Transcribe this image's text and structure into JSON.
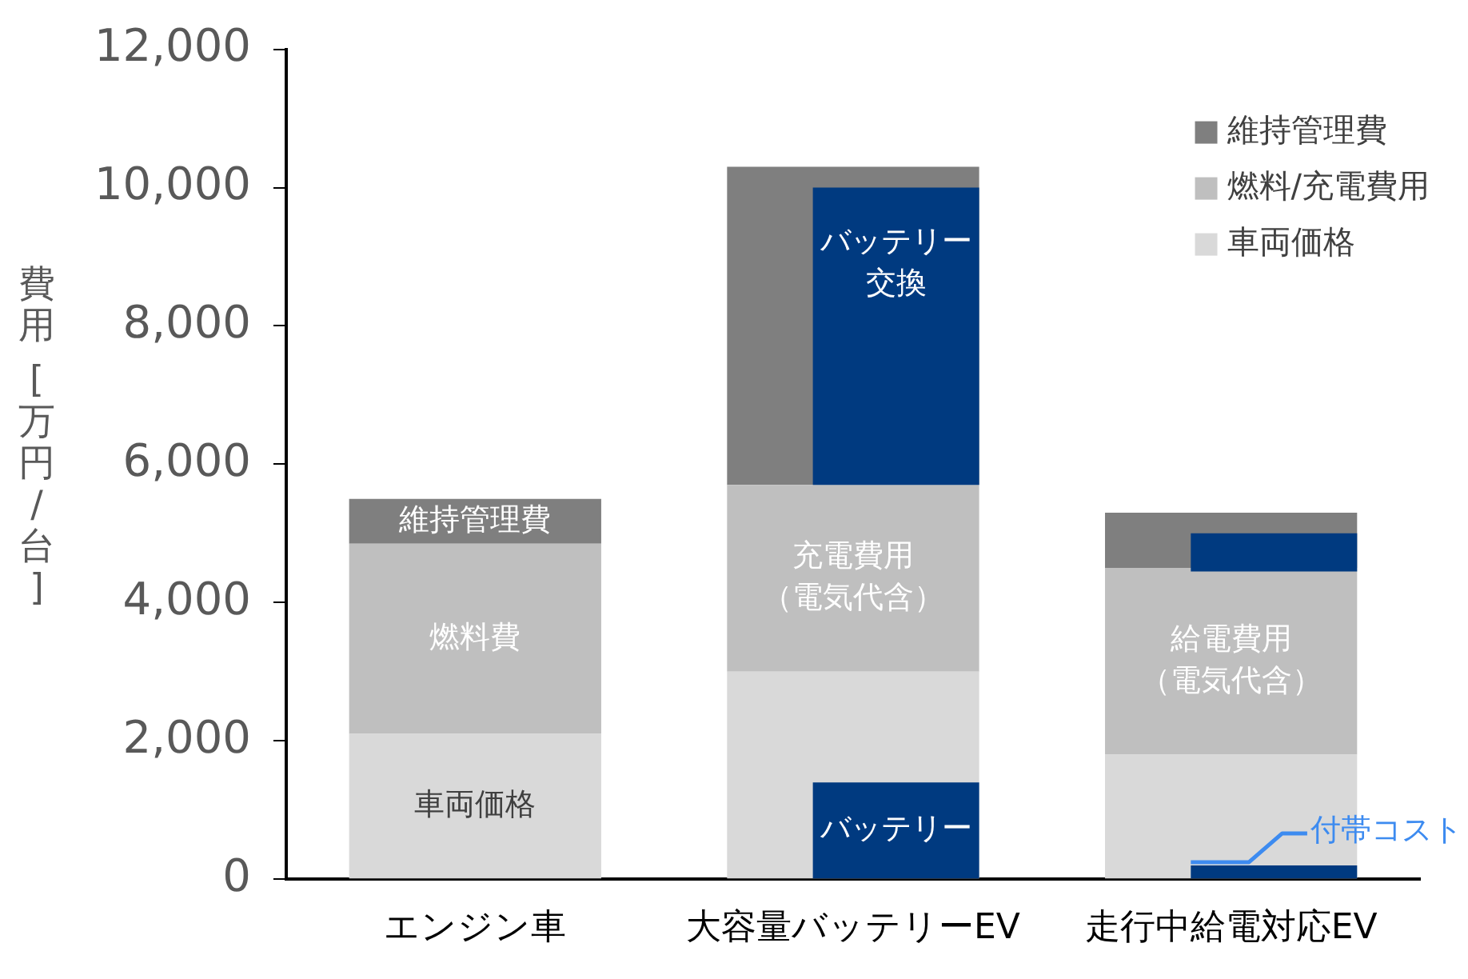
{
  "chart_data": {
    "type": "bar",
    "ylabel": "費用 [万円/台]",
    "categories": [
      "エンジン車",
      "大容量バッテリーEV",
      "走行中給電対応EV"
    ],
    "ylim": [
      0,
      12000
    ],
    "yticks": [
      {
        "value": 0,
        "label": "0"
      },
      {
        "value": 2000,
        "label": "2,000"
      },
      {
        "value": 4000,
        "label": "4,000"
      },
      {
        "value": 6000,
        "label": "6,000"
      },
      {
        "value": 8000,
        "label": "8,000"
      },
      {
        "value": 10000,
        "label": "10,000"
      },
      {
        "value": 12000,
        "label": "12,000"
      }
    ],
    "legend": "top right",
    "series": [
      {
        "name": "車両価格",
        "color": "#d9d9d9",
        "base": [
          0,
          0,
          0
        ],
        "values": [
          2100,
          3000,
          1800
        ]
      },
      {
        "name": "燃料/充電費用",
        "color": "#bfbfbf",
        "base": [
          2100,
          3000,
          1800
        ],
        "values": [
          2750,
          2700,
          2700
        ]
      },
      {
        "name": "維持管理費",
        "color": "#7f7f7f",
        "base": [
          4850,
          5700,
          4500
        ],
        "values": [
          650,
          4600,
          800
        ]
      },
      {
        "color": "#003a80",
        "base": [
          null,
          0,
          0
        ],
        "values": [
          null,
          1400,
          200
        ]
      },
      {
        "color": "#003a80",
        "base": [
          null,
          5700,
          4450
        ],
        "values": [
          null,
          4300,
          550
        ]
      }
    ],
    "annotations": [
      {
        "text": "維持管理費",
        "x": "エンジン車",
        "y": 5500
      },
      {
        "text": "燃料費",
        "x": "エンジン車",
        "y": 4850
      },
      {
        "text": "車両価格",
        "x": "エンジン車",
        "y": 2100
      },
      {
        "text": "充電費用（電気代含）",
        "x": "大容量バッテリーEV",
        "y": 5700
      },
      {
        "text": "バッテリー交換",
        "x": "大容量バッテリーEV",
        "y": 10000
      },
      {
        "text": "バッテリー",
        "x": "大容量バッテリーEV",
        "y": 1400
      },
      {
        "text": "給電費用（電気代含）",
        "x": "走行中給電対応EV",
        "y": 4500
      },
      {
        "text": "付帯コスト",
        "x": "走行中給電対応EV",
        "y": 200
      }
    ]
  }
}
